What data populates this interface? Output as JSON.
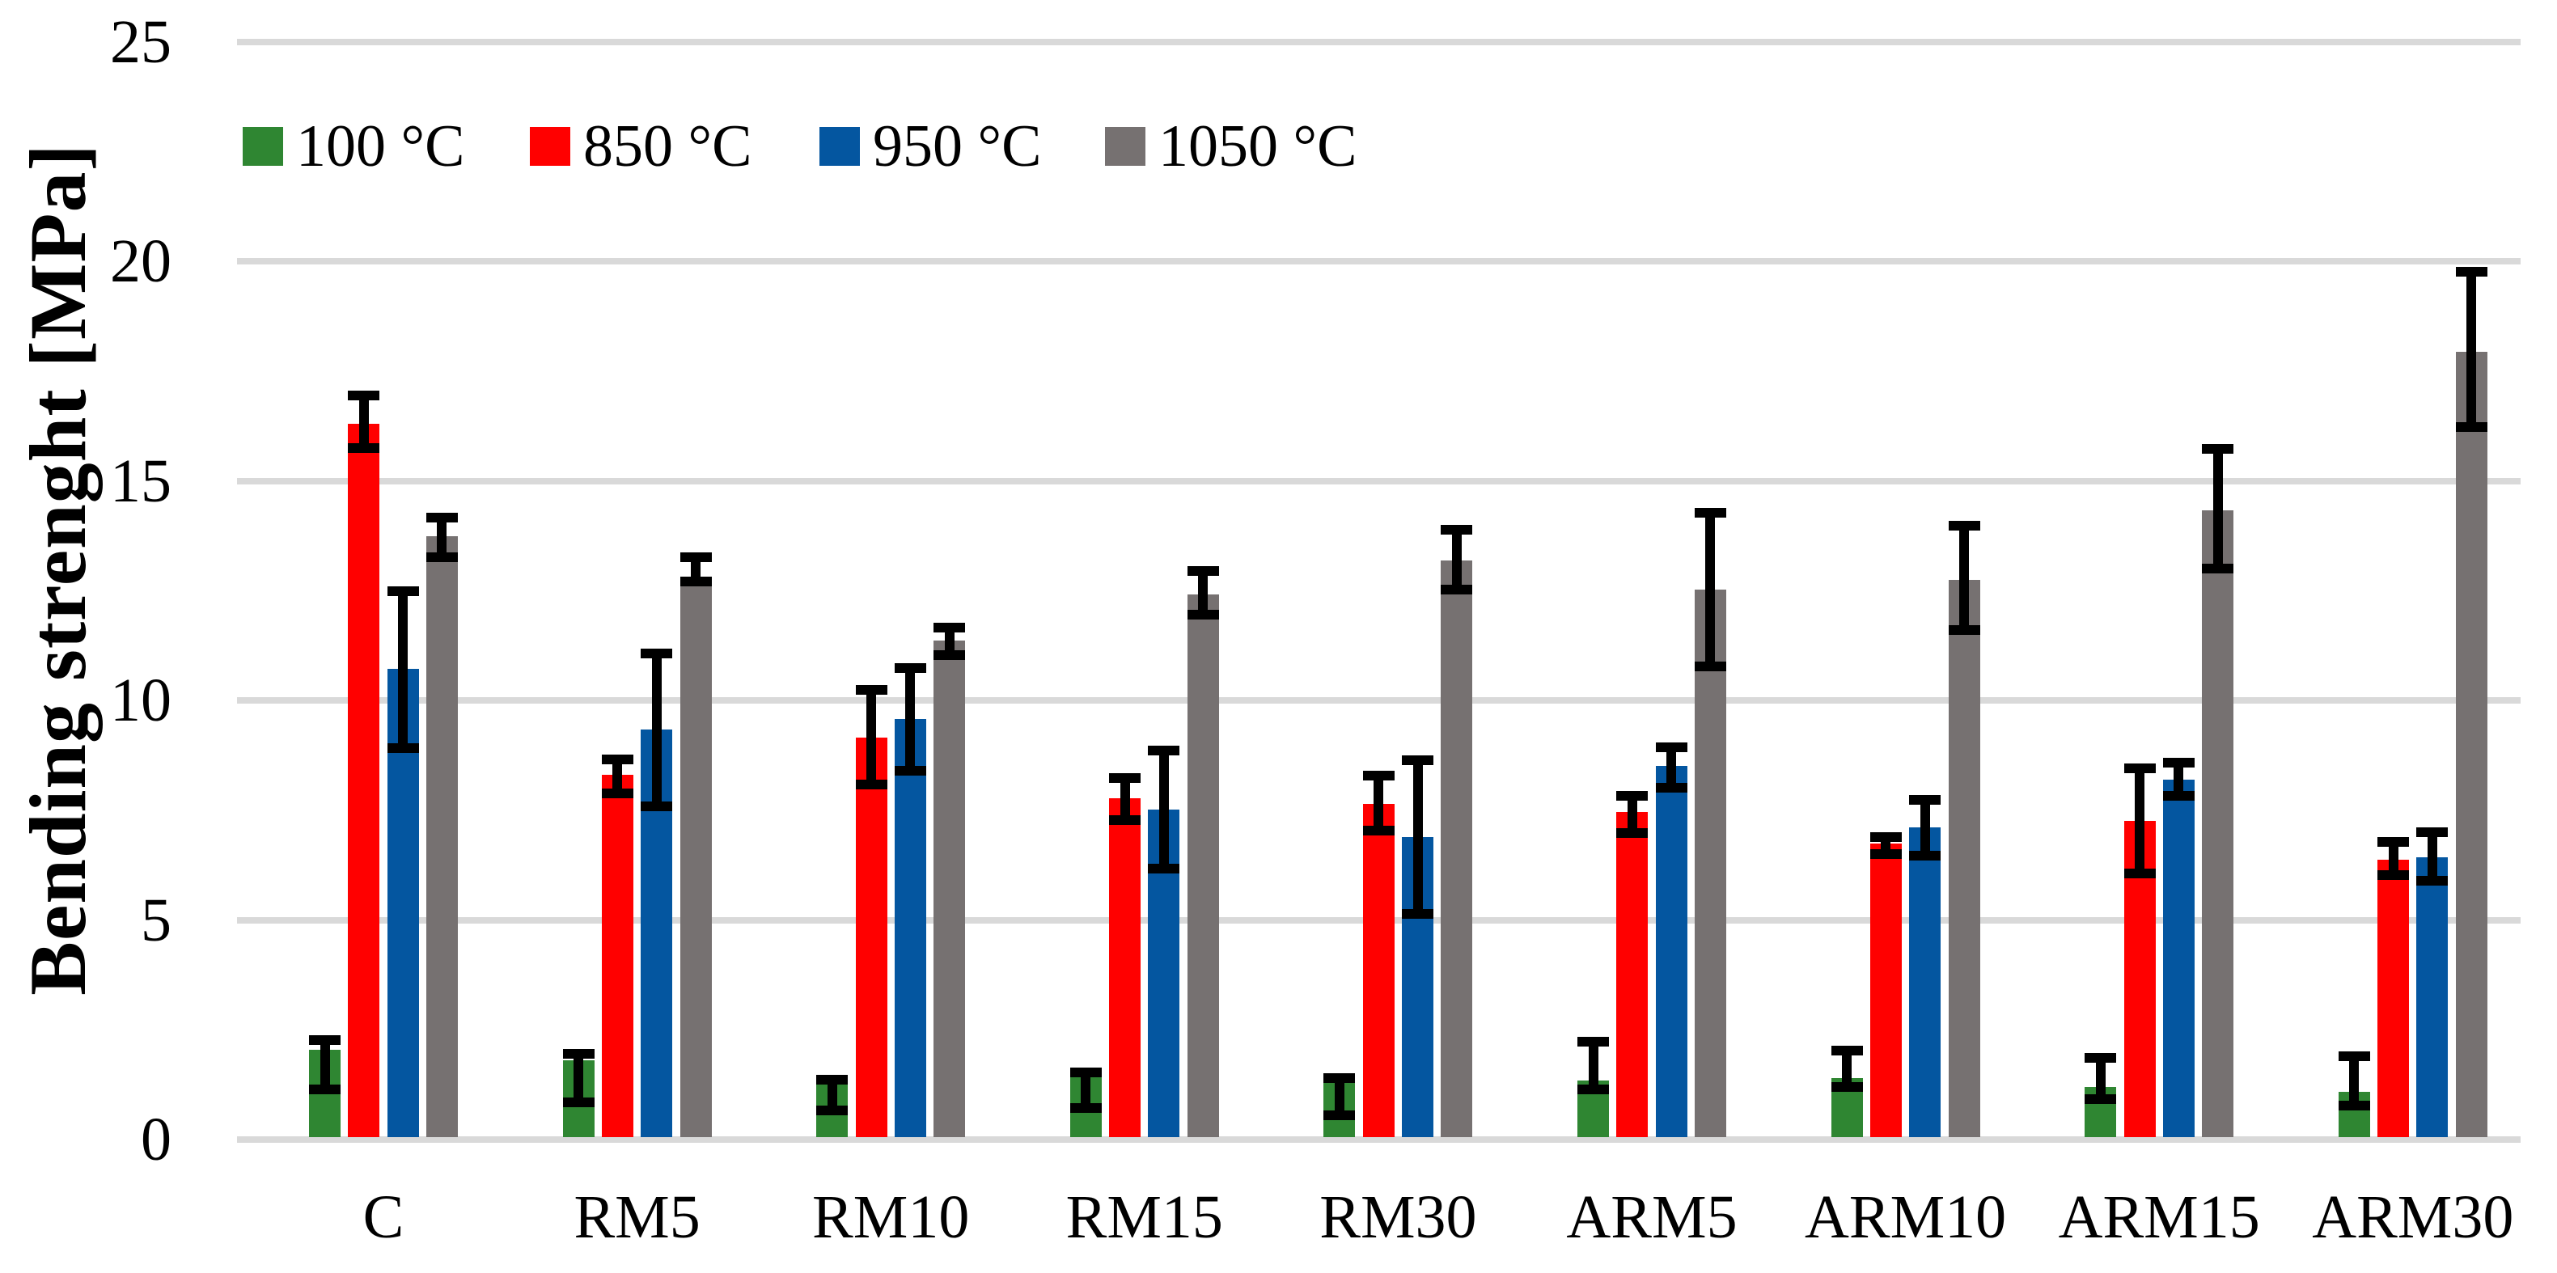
{
  "chart_data": {
    "type": "bar",
    "title": "",
    "xlabel": "",
    "ylabel": "Bending strenght [MPa]",
    "ylim": [
      0,
      25
    ],
    "yticks": [
      0,
      5,
      10,
      15,
      20,
      25
    ],
    "grid": true,
    "legend_position": "top-left-inside",
    "categories": [
      "C",
      "RM5",
      "RM10",
      "RM15",
      "RM30",
      "ARM5",
      "ARM10",
      "ARM15",
      "ARM30"
    ],
    "series": [
      {
        "name": "100 °C",
        "color": "#2F8632",
        "values": [
          2.05,
          1.81,
          1.3,
          1.43,
          1.35,
          1.34,
          1.4,
          1.2,
          1.08
        ],
        "err_lo": [
          1.14,
          0.85,
          0.67,
          0.72,
          0.55,
          1.15,
          1.2,
          0.92,
          0.77
        ],
        "err_hi": [
          2.27,
          1.95,
          1.37,
          1.52,
          1.4,
          2.22,
          2.02,
          1.86,
          1.9
        ]
      },
      {
        "name": "850 °C",
        "color": "#FF0000",
        "values": [
          16.3,
          8.31,
          9.16,
          7.78,
          7.64,
          7.45,
          6.74,
          7.25,
          6.38
        ],
        "err_lo": [
          15.75,
          7.89,
          8.08,
          7.27,
          7.03,
          6.98,
          6.5,
          6.06,
          6.02
        ],
        "err_hi": [
          16.95,
          8.66,
          10.24,
          8.24,
          8.28,
          7.82,
          6.89,
          8.46,
          6.78
        ]
      },
      {
        "name": "950 °C",
        "color": "#0456A0",
        "values": [
          10.71,
          9.34,
          9.58,
          7.51,
          6.89,
          8.5,
          7.11,
          8.2,
          6.43
        ],
        "err_lo": [
          8.92,
          7.58,
          8.39,
          6.17,
          5.13,
          8.02,
          6.47,
          7.82,
          5.9
        ],
        "err_hi": [
          12.49,
          11.06,
          10.73,
          8.86,
          8.63,
          8.94,
          7.73,
          8.59,
          6.99
        ]
      },
      {
        "name": "1050 °C",
        "color": "#767171",
        "values": [
          13.74,
          12.74,
          11.37,
          12.42,
          13.19,
          12.53,
          12.75,
          14.32,
          17.93
        ],
        "err_lo": [
          13.26,
          12.7,
          11.04,
          11.96,
          12.53,
          10.77,
          11.61,
          13.0,
          16.23
        ],
        "err_hi": [
          14.16,
          13.26,
          11.65,
          12.95,
          13.88,
          14.27,
          13.97,
          15.73,
          19.76
        ]
      }
    ],
    "colors": {
      "gridline": "#D9D9D9",
      "error_bar": "#000000",
      "text": "#000000",
      "background": "#FFFFFF"
    }
  }
}
